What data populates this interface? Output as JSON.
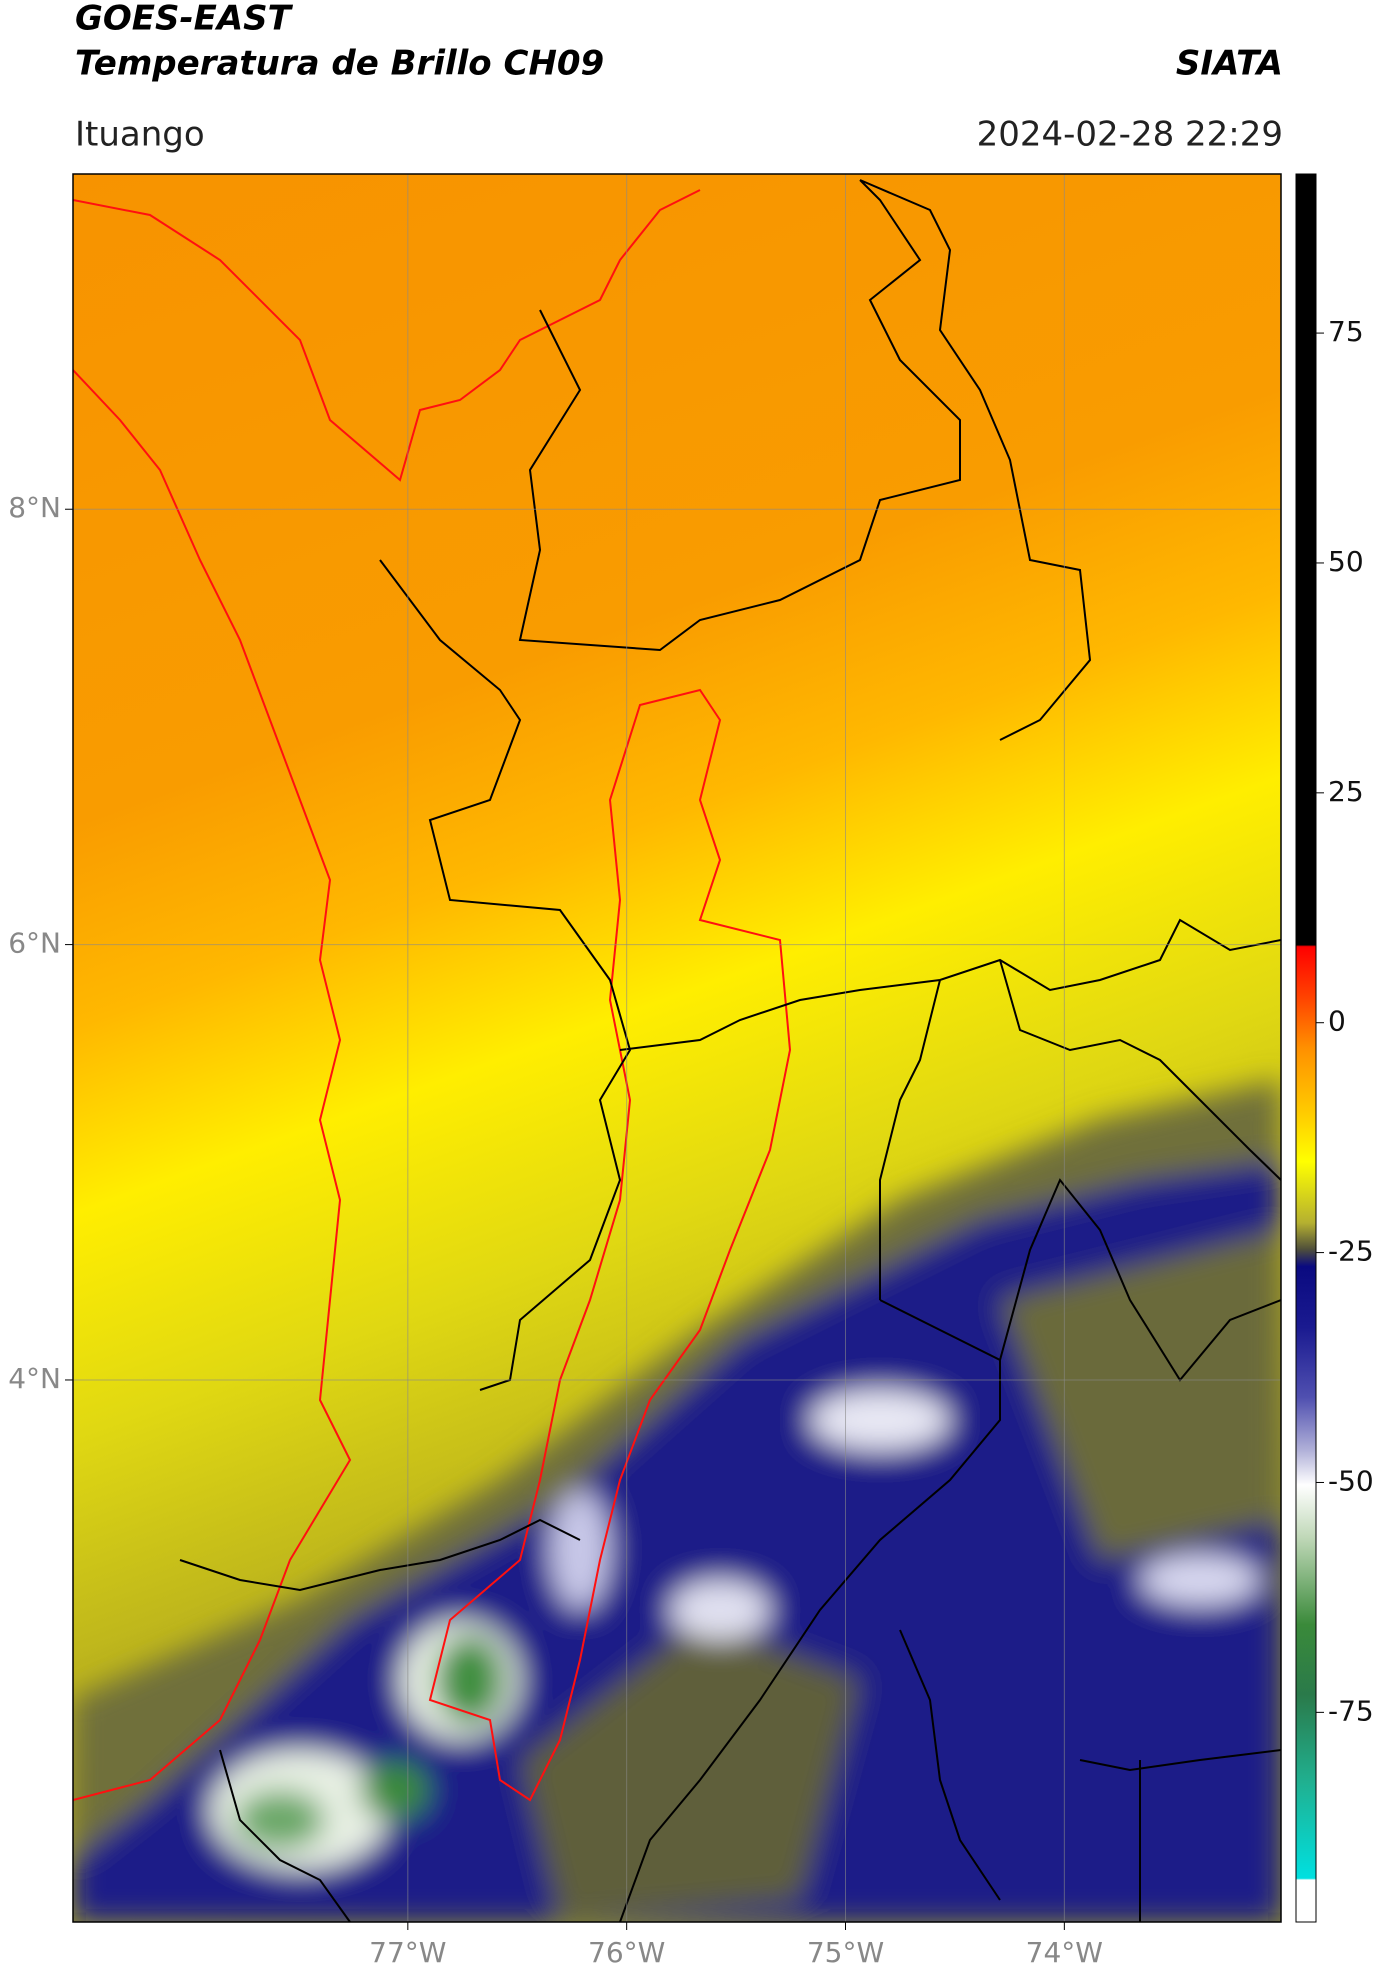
{
  "chart_data": {
    "type": "map",
    "title": "GOES-EAST",
    "subtitle": "Temperatura de Brillo CH09",
    "source": "SIATA",
    "location": "Ituango",
    "datetime": "2024-02-28 22:29",
    "xlim": [
      -78.53,
      -73.01
    ],
    "ylim": [
      1.51,
      9.54
    ],
    "xticks": [
      {
        "value": -77,
        "label": "77°W"
      },
      {
        "value": -76,
        "label": "76°W"
      },
      {
        "value": -75,
        "label": "75°W"
      },
      {
        "value": -74,
        "label": "74°W"
      }
    ],
    "yticks": [
      {
        "value": 4,
        "label": "4°N"
      },
      {
        "value": 6,
        "label": "6°N"
      },
      {
        "value": 8,
        "label": "8°N"
      }
    ],
    "grid": true,
    "colorbar": {
      "lim": [
        -97.8,
        92.3
      ],
      "ticks": [
        -75,
        -50,
        -25,
        0,
        25,
        50,
        75
      ]
    }
  }
}
